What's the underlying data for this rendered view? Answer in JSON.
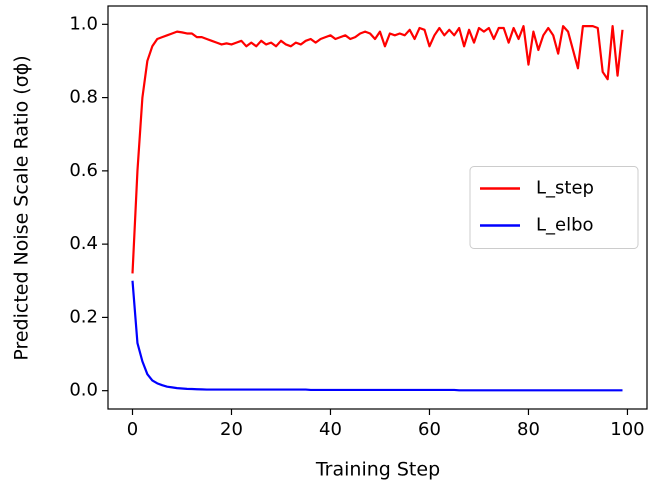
{
  "chart_data": {
    "type": "line",
    "xlabel": "Training Step",
    "ylabel": "Predicted Noise Scale Ratio (σϕ)",
    "x": [
      0,
      1,
      2,
      3,
      4,
      5,
      6,
      7,
      8,
      9,
      10,
      11,
      12,
      13,
      14,
      15,
      16,
      17,
      18,
      19,
      20,
      21,
      22,
      23,
      24,
      25,
      26,
      27,
      28,
      29,
      30,
      31,
      32,
      33,
      34,
      35,
      36,
      37,
      38,
      39,
      40,
      41,
      42,
      43,
      44,
      45,
      46,
      47,
      48,
      49,
      50,
      51,
      52,
      53,
      54,
      55,
      56,
      57,
      58,
      59,
      60,
      61,
      62,
      63,
      64,
      65,
      66,
      67,
      68,
      69,
      70,
      71,
      72,
      73,
      74,
      75,
      76,
      77,
      78,
      79,
      80,
      81,
      82,
      83,
      84,
      85,
      86,
      87,
      88,
      89,
      90,
      91,
      92,
      93,
      94,
      95,
      96,
      97,
      98,
      99
    ],
    "series": [
      {
        "name": "L_step",
        "color": "#ff0000",
        "values": [
          0.32,
          0.6,
          0.8,
          0.9,
          0.94,
          0.96,
          0.965,
          0.97,
          0.975,
          0.98,
          0.978,
          0.975,
          0.975,
          0.965,
          0.965,
          0.96,
          0.955,
          0.95,
          0.945,
          0.948,
          0.945,
          0.95,
          0.955,
          0.94,
          0.95,
          0.94,
          0.955,
          0.945,
          0.95,
          0.94,
          0.955,
          0.945,
          0.94,
          0.95,
          0.945,
          0.955,
          0.96,
          0.95,
          0.96,
          0.965,
          0.97,
          0.96,
          0.965,
          0.97,
          0.96,
          0.965,
          0.975,
          0.98,
          0.975,
          0.96,
          0.98,
          0.94,
          0.975,
          0.97,
          0.975,
          0.97,
          0.985,
          0.96,
          0.99,
          0.985,
          0.94,
          0.97,
          0.99,
          0.97,
          0.985,
          0.97,
          0.99,
          0.94,
          0.985,
          0.95,
          0.99,
          0.98,
          0.99,
          0.96,
          0.99,
          0.99,
          0.95,
          0.99,
          0.96,
          0.995,
          0.89,
          0.98,
          0.93,
          0.97,
          0.99,
          0.97,
          0.92,
          0.995,
          0.98,
          0.93,
          0.88,
          0.995,
          0.995,
          0.995,
          0.99,
          0.87,
          0.85,
          0.995,
          0.86,
          0.985
        ]
      },
      {
        "name": "L_elbo",
        "color": "#0000ff",
        "values": [
          0.3,
          0.13,
          0.08,
          0.045,
          0.028,
          0.02,
          0.015,
          0.011,
          0.009,
          0.007,
          0.006,
          0.005,
          0.0045,
          0.004,
          0.0035,
          0.003,
          0.003,
          0.003,
          0.003,
          0.003,
          0.003,
          0.003,
          0.003,
          0.003,
          0.003,
          0.003,
          0.003,
          0.003,
          0.003,
          0.003,
          0.003,
          0.003,
          0.003,
          0.003,
          0.003,
          0.003,
          0.002,
          0.002,
          0.002,
          0.002,
          0.002,
          0.002,
          0.002,
          0.002,
          0.002,
          0.002,
          0.002,
          0.002,
          0.002,
          0.002,
          0.002,
          0.002,
          0.002,
          0.002,
          0.002,
          0.002,
          0.002,
          0.002,
          0.002,
          0.002,
          0.002,
          0.002,
          0.002,
          0.002,
          0.002,
          0.002,
          0.001,
          0.001,
          0.001,
          0.001,
          0.001,
          0.001,
          0.001,
          0.001,
          0.001,
          0.001,
          0.001,
          0.001,
          0.001,
          0.001,
          0.001,
          0.001,
          0.001,
          0.001,
          0.001,
          0.001,
          0.001,
          0.001,
          0.001,
          0.001,
          0.001,
          0.001,
          0.001,
          0.001,
          0.001,
          0.001,
          0.001,
          0.001,
          0.001,
          0.001
        ]
      }
    ],
    "xlim": [
      -4.95,
      103.95
    ],
    "xticks": [
      0,
      20,
      40,
      60,
      80,
      100
    ],
    "ylim": [
      -0.05,
      1.05
    ],
    "yticks": [
      {
        "value": 0,
        "label": "0.0"
      },
      {
        "value": 0.2,
        "label": "0.2"
      },
      {
        "value": 0.4,
        "label": "0.4"
      },
      {
        "value": 0.6,
        "label": "0.6"
      },
      {
        "value": 0.8,
        "label": "0.8"
      },
      {
        "value": 1,
        "label": "1.0"
      }
    ],
    "legend": "center right"
  }
}
